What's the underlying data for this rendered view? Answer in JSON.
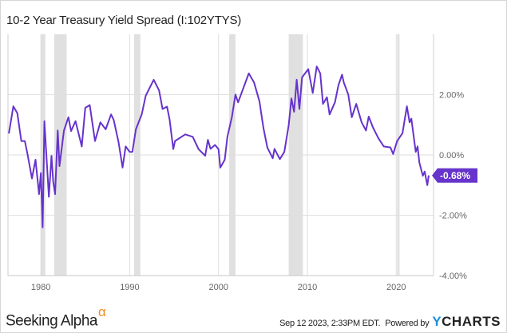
{
  "chart_data": {
    "type": "line",
    "title": "10-2 Year Treasury Yield Spread (I:102YTYS)",
    "xlabel": "",
    "ylabel": "",
    "xlim": [
      1976.3,
      2024.2
    ],
    "ylim": [
      -4,
      4
    ],
    "x_ticks": [
      1980,
      1990,
      2000,
      2010,
      2020
    ],
    "x_tick_labels": [
      "1980",
      "1990",
      "2000",
      "2010",
      "2020"
    ],
    "y_ticks": [
      2,
      0,
      -2,
      -4
    ],
    "y_tick_labels": [
      "2.00%",
      "0.00%",
      "-2.00%",
      "-4.00%"
    ],
    "grid": true,
    "line_color": "#6633cc",
    "recession_color": "#e0e0e0",
    "recessions": [
      [
        1980.0,
        1980.5
      ],
      [
        1981.5,
        1982.9
      ],
      [
        1990.5,
        1991.2
      ],
      [
        2001.2,
        2001.9
      ],
      [
        2007.9,
        2009.5
      ],
      [
        2020.1,
        2020.3
      ]
    ],
    "last_value_label": "-0.68%",
    "series": [
      {
        "x": [
          1976.4,
          1976.9,
          1977.35,
          1977.8,
          1978.2,
          1978.5,
          1979.0,
          1979.4,
          1979.8,
          1980.0,
          1980.2,
          1980.4,
          1980.9,
          1981.2,
          1981.4,
          1981.6,
          1981.9,
          1982.1,
          1982.6,
          1983.1,
          1983.4,
          1983.9,
          1984.6,
          1985.0,
          1985.5,
          1986.1,
          1986.7,
          1987.3,
          1987.9,
          1988.2,
          1988.75,
          1989.2,
          1989.55,
          1990.0,
          1990.3,
          1990.7,
          1991.35,
          1991.8,
          1992.7,
          1993.3,
          1993.7,
          1994.2,
          1994.5,
          1994.9,
          1995.1,
          1996.25,
          1997.1,
          1997.75,
          1998.5,
          1998.8,
          1999.1,
          1999.6,
          2000.0,
          2000.2,
          2000.7,
          2001.0,
          2001.5,
          2001.9,
          2002.2,
          2003.4,
          2004.0,
          2004.6,
          2005.05,
          2005.5,
          2006.1,
          2006.3,
          2006.9,
          2007.4,
          2007.9,
          2008.2,
          2008.5,
          2008.8,
          2009.1,
          2009.4,
          2010.1,
          2010.6,
          2011.05,
          2011.45,
          2011.75,
          2012.2,
          2012.5,
          2013.1,
          2013.5,
          2013.9,
          2014.1,
          2014.6,
          2015.0,
          2015.5,
          2016.1,
          2016.6,
          2016.9,
          2017.4,
          2018.0,
          2018.6,
          2019.35,
          2019.65,
          2020.1,
          2020.7,
          2021.2,
          2021.5,
          2021.7,
          2022.2,
          2022.4,
          2022.6,
          2023.0,
          2023.2,
          2023.5,
          2023.66
        ],
        "y": [
          0.71,
          1.61,
          1.38,
          0.46,
          0.46,
          0.02,
          -0.78,
          -0.16,
          -1.3,
          -0.6,
          -2.4,
          1.12,
          -1.39,
          -0.03,
          -0.9,
          -1.3,
          0.81,
          -0.37,
          0.81,
          1.25,
          0.79,
          1.12,
          0.28,
          1.56,
          1.65,
          0.46,
          1.08,
          0.85,
          1.34,
          1.16,
          0.42,
          -0.42,
          0.28,
          0.1,
          0.1,
          0.85,
          1.34,
          1.96,
          2.49,
          2.14,
          1.52,
          1.6,
          1.16,
          0.19,
          0.46,
          0.68,
          0.6,
          0.19,
          -0.03,
          0.5,
          0.2,
          0.33,
          0.19,
          -0.42,
          -0.16,
          0.6,
          1.25,
          2.0,
          1.74,
          2.7,
          2.4,
          1.78,
          0.9,
          0.24,
          -0.11,
          0.2,
          -0.14,
          0.1,
          0.99,
          1.87,
          1.43,
          2.49,
          1.52,
          2.57,
          2.84,
          2.05,
          2.93,
          2.7,
          1.69,
          1.91,
          1.34,
          1.74,
          2.31,
          2.66,
          2.4,
          2.0,
          1.25,
          1.69,
          1.08,
          0.81,
          1.27,
          0.9,
          0.55,
          0.28,
          0.25,
          0.03,
          0.46,
          0.72,
          1.61,
          1.08,
          1.2,
          0.1,
          0.28,
          -0.25,
          -0.69,
          -0.55,
          -1.0,
          -0.68
        ]
      }
    ]
  },
  "footer": {
    "logo_text": "Seeking Alpha",
    "logo_mark": "α",
    "timestamp": "Sep 12 2023, 2:33PM EDT.",
    "powered_by": "Powered by",
    "brand_y": "Y",
    "brand_rest": "CHARTS"
  }
}
